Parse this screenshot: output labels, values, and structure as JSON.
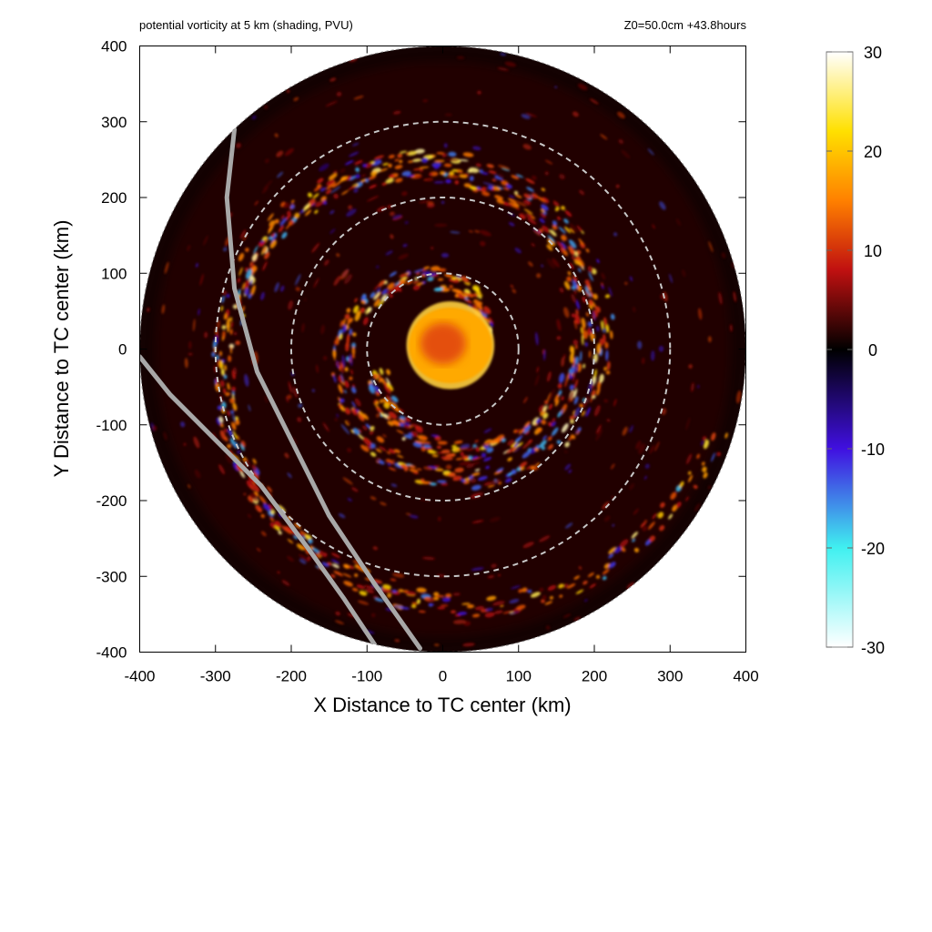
{
  "chart_data": {
    "type": "heatmap",
    "title": "potential vorticity at 5 km (shading, PVU)",
    "subtitle": "Z0=50.0cm  +43.8hours",
    "xlabel": "X Distance to TC center (km)",
    "ylabel": "Y Distance to TC center (km)",
    "xlim": [
      -400,
      400
    ],
    "ylim": [
      -400,
      400
    ],
    "xticks": [
      -400,
      -300,
      -200,
      -100,
      0,
      100,
      200,
      300,
      400
    ],
    "yticks": [
      -400,
      -300,
      -200,
      -100,
      0,
      100,
      200,
      300,
      400
    ],
    "domain_radius_km": 400,
    "range_rings_km": [
      100,
      200,
      300
    ],
    "colorbar": {
      "min": -30,
      "max": 30,
      "ticks": [
        30,
        20,
        10,
        0,
        -10,
        -20,
        -30
      ],
      "stops": [
        {
          "value": -30,
          "color": "#ffffff"
        },
        {
          "value": -20,
          "color": "#40f0f0"
        },
        {
          "value": -10,
          "color": "#4010e0"
        },
        {
          "value": 0,
          "color": "#000000"
        },
        {
          "value": 8,
          "color": "#c01010"
        },
        {
          "value": 15,
          "color": "#ff8000"
        },
        {
          "value": 22,
          "color": "#ffe000"
        },
        {
          "value": 30,
          "color": "#ffffff"
        }
      ]
    },
    "coast_lines": [
      {
        "points": [
          [
            -275,
            290
          ],
          [
            -285,
            200
          ],
          [
            -275,
            80
          ],
          [
            -245,
            -30
          ],
          [
            -200,
            -120
          ],
          [
            -150,
            -220
          ],
          [
            -90,
            -310
          ],
          [
            -30,
            -395
          ]
        ]
      },
      {
        "points": [
          [
            -400,
            -10
          ],
          [
            -360,
            -60
          ],
          [
            -300,
            -120
          ],
          [
            -240,
            -180
          ],
          [
            -180,
            -260
          ],
          [
            -130,
            -330
          ],
          [
            -90,
            -390
          ]
        ]
      }
    ],
    "pv_features": {
      "core": {
        "x": 10,
        "y": 5,
        "rx": 55,
        "ry": 50,
        "value": 18
      },
      "eyewall_ring_km": 52,
      "spiral_bands": [
        {
          "turns": 1.7,
          "r0": 60,
          "r1": 330,
          "phase_deg": 20
        },
        {
          "turns": 1.4,
          "r0": 90,
          "r1": 380,
          "phase_deg": 200
        }
      ]
    }
  }
}
